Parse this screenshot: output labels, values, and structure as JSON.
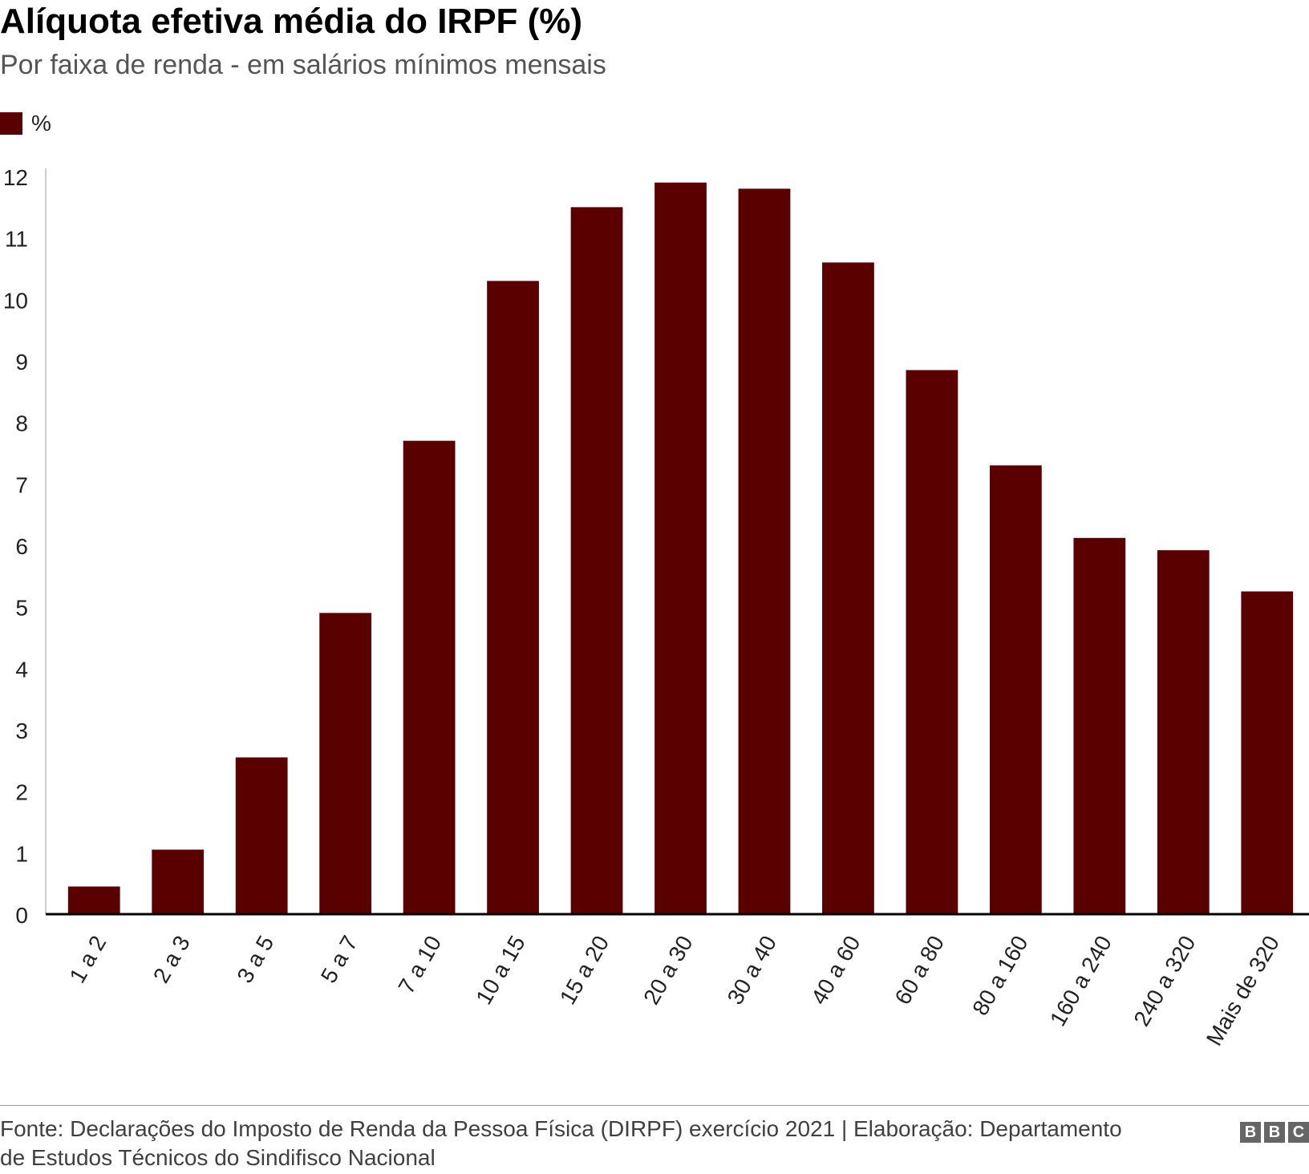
{
  "header": {
    "title": "Alíquota efetiva média do IRPF (%)",
    "subtitle": "Por faixa de renda - em salários mínimos mensais"
  },
  "legend": {
    "label": "%",
    "color": "#5a0000"
  },
  "chart_data": {
    "type": "bar",
    "title": "Alíquota efetiva média do IRPF (%)",
    "subtitle": "Por faixa de renda - em salários mínimos mensais",
    "xlabel": "",
    "ylabel": "",
    "ylim": [
      0,
      12
    ],
    "yticks": [
      0,
      1,
      2,
      3,
      4,
      5,
      6,
      7,
      8,
      9,
      10,
      11,
      12
    ],
    "grid": false,
    "legend_position": "top-left",
    "bar_color": "#5a0000",
    "categories": [
      "1 a 2",
      "2 a 3",
      "3 a 5",
      "5 a 7",
      "7 a 10",
      "10 a 15",
      "15 a 20",
      "20 a 30",
      "30 a 40",
      "40 a 60",
      "60 a 80",
      "80 a 160",
      "160 a 240",
      "240 a 320",
      "Mais de 320"
    ],
    "series": [
      {
        "name": "%",
        "values": [
          0.45,
          1.05,
          2.55,
          4.9,
          7.7,
          10.3,
          11.5,
          11.9,
          11.8,
          10.6,
          8.85,
          7.3,
          6.12,
          5.92,
          5.25
        ]
      }
    ]
  },
  "footer": {
    "source": "Fonte: Declarações do Imposto de Renda da Pessoa Física (DIRPF) exercício 2021 | Elaboração: Departamento de Estudos Técnicos do Sindifisco Nacional",
    "logo_letters": [
      "B",
      "B",
      "C"
    ]
  }
}
